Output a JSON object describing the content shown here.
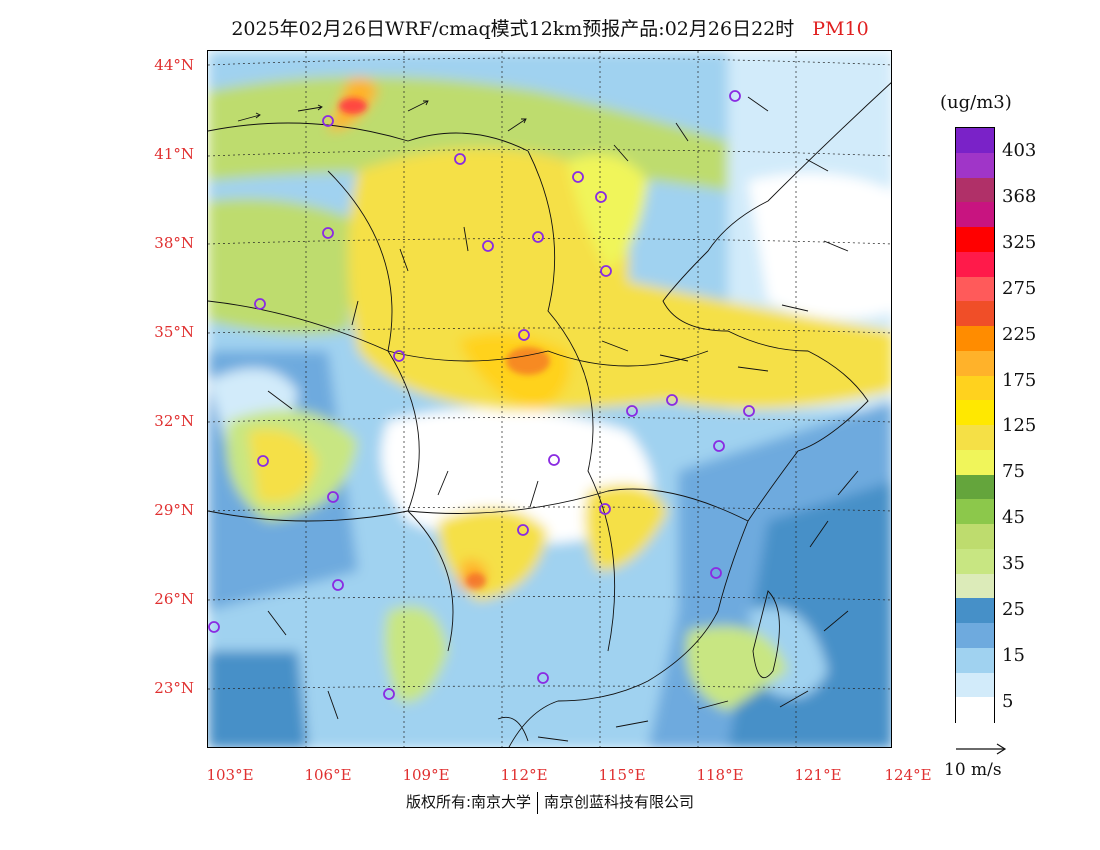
{
  "title": {
    "main": "2025年02月26日WRF/cmaq模式12km预报产品:02月26日22时",
    "variable": "PM10"
  },
  "map": {
    "lat_labels": [
      "44°N",
      "41°N",
      "38°N",
      "35°N",
      "32°N",
      "29°N",
      "26°N",
      "23°N"
    ],
    "lon_labels": [
      "103°E",
      "106°E",
      "109°E",
      "112°E",
      "115°E",
      "118°E",
      "121°E",
      "124°E"
    ]
  },
  "colorbar": {
    "unit": "(ug/m3)",
    "labels": [
      "403",
      "368",
      "325",
      "275",
      "225",
      "175",
      "125",
      "75",
      "45",
      "35",
      "25",
      "15",
      "5"
    ],
    "colors": [
      "#7a22c8",
      "#a035c8",
      "#b03068",
      "#c81480",
      "#ff0000",
      "#ff1a4a",
      "#ff5a5a",
      "#f04e28",
      "#ff8c00",
      "#ffb22a",
      "#ffd21e",
      "#ffe800",
      "#f5e046",
      "#f0f55a",
      "#64a53c",
      "#8cc84b",
      "#bedc6e",
      "#c8e682",
      "#dcebb9",
      "#4690c8",
      "#6eaade",
      "#a0d2f0",
      "#d2ebfa",
      "#ffffff"
    ],
    "colors_note": ""
  },
  "wind_reference": {
    "label": "10 m/s"
  },
  "footer": {
    "left": "版权所有:南京大学",
    "right": "南京创蓝科技有限公司"
  },
  "map_colors": {
    "white": "#ffffff",
    "light_blue": "#d2ebfa",
    "blue": "#a0d2f0",
    "mid_blue": "#6eaade",
    "dark_blue": "#4690c8",
    "pale_green": "#dcebb9",
    "light_green": "#c8e682",
    "green": "#bedc6e",
    "dark_green": "#8cc84b",
    "yellow_green": "#f0f55a",
    "yellow": "#f5e046",
    "bright_yellow": "#ffe800",
    "orange_yellow": "#ffd21e",
    "orange": "#ffb22a",
    "red_orange": "#f04e28",
    "red": "#ff1a4a",
    "purple": "#a035c8"
  }
}
